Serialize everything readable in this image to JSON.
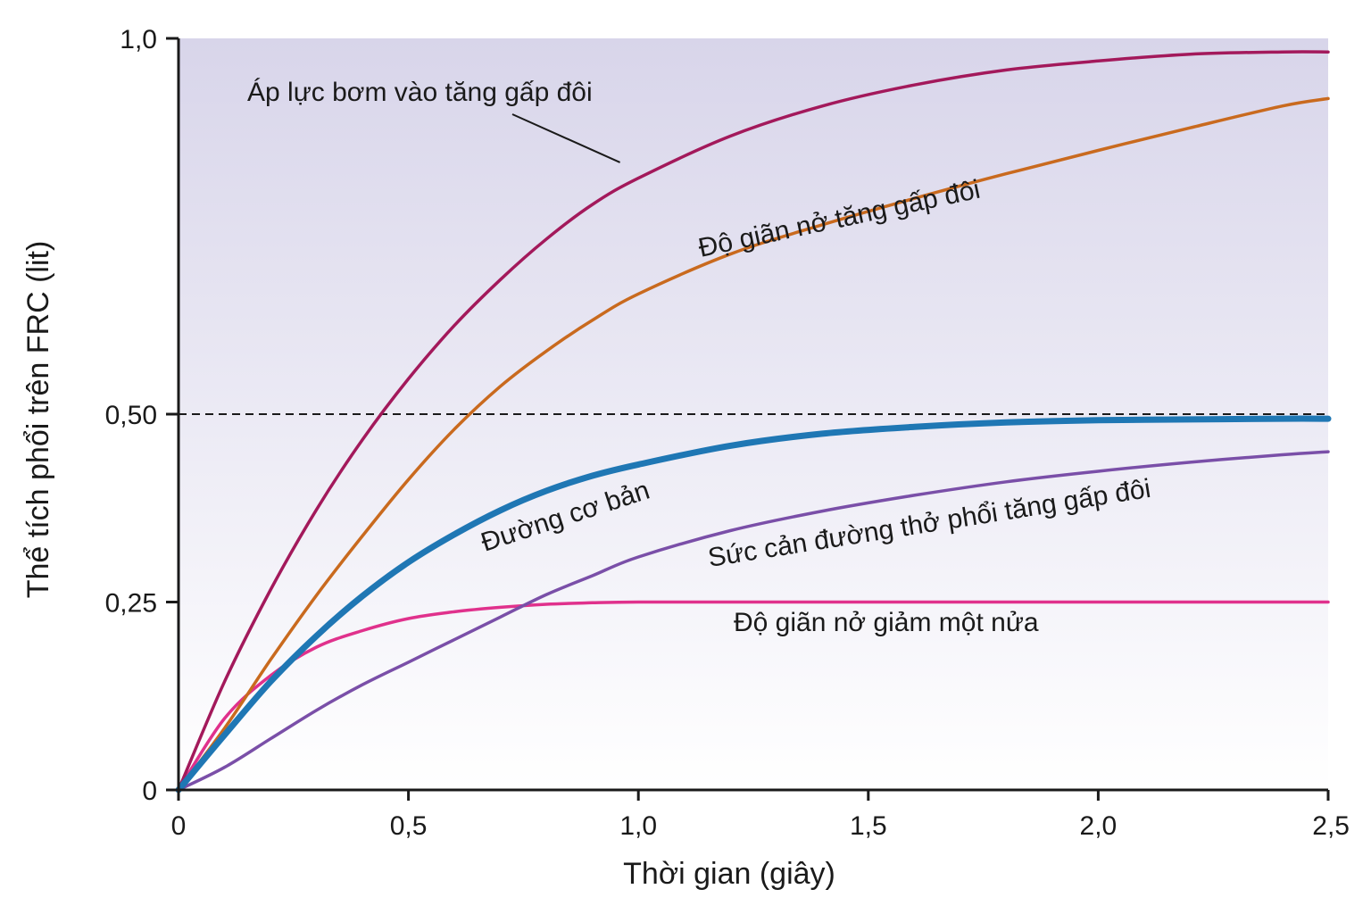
{
  "chart_data": {
    "type": "line",
    "xlabel": "Thời gian (giây)",
    "ylabel": "Thể tích phổi trên FRC (lit)",
    "xlim": [
      0,
      2.5
    ],
    "ylim": [
      0,
      1.0
    ],
    "x_ticks": [
      0,
      0.5,
      1.0,
      1.5,
      2.0,
      2.5
    ],
    "x_tick_labels": [
      "0",
      "0,5",
      "1,0",
      "1,5",
      "2,0",
      "2,5"
    ],
    "y_ticks": [
      0,
      0.25,
      0.5,
      1.0
    ],
    "y_tick_labels": [
      "0",
      "0,25",
      "0,50",
      "1,0"
    ],
    "reference_line": {
      "y": 0.5,
      "style": "dashed"
    },
    "x": [
      0,
      0.1,
      0.2,
      0.3,
      0.4,
      0.5,
      0.6,
      0.7,
      0.8,
      0.9,
      1.0,
      1.2,
      1.4,
      1.6,
      1.8,
      2.0,
      2.2,
      2.4,
      2.5
    ],
    "series": [
      {
        "name": "Áp lực bơm vào tăng gấp đôi",
        "color": "#a3195b",
        "width": "normal",
        "values": [
          0,
          0.144,
          0.266,
          0.373,
          0.466,
          0.547,
          0.618,
          0.679,
          0.733,
          0.779,
          0.814,
          0.87,
          0.91,
          0.938,
          0.958,
          0.97,
          0.979,
          0.982,
          0.982
        ]
      },
      {
        "name": "Độ giãn nở tăng gấp đôi",
        "color": "#c96a1e",
        "width": "normal",
        "values": [
          0,
          0.082,
          0.173,
          0.259,
          0.338,
          0.413,
          0.48,
          0.537,
          0.584,
          0.625,
          0.66,
          0.713,
          0.752,
          0.787,
          0.82,
          0.851,
          0.881,
          0.91,
          0.92
        ]
      },
      {
        "name": "Đường cơ bản",
        "color": "#1f77b4",
        "width": "thick",
        "values": [
          0,
          0.073,
          0.144,
          0.205,
          0.258,
          0.303,
          0.34,
          0.372,
          0.398,
          0.418,
          0.433,
          0.458,
          0.474,
          0.483,
          0.489,
          0.492,
          0.493,
          0.494,
          0.494
        ]
      },
      {
        "name": "Sức cản đường thở phổi tăng gấp đôi",
        "color": "#7a4fa8",
        "width": "normal",
        "values": [
          0,
          0.03,
          0.068,
          0.106,
          0.14,
          0.17,
          0.2,
          0.23,
          0.26,
          0.285,
          0.31,
          0.345,
          0.371,
          0.392,
          0.41,
          0.424,
          0.436,
          0.446,
          0.45
        ]
      },
      {
        "name": "Độ giãn nở giảm một nửa",
        "color": "#e0318c",
        "width": "normal",
        "values": [
          0,
          0.095,
          0.152,
          0.19,
          0.212,
          0.228,
          0.237,
          0.243,
          0.247,
          0.249,
          0.25,
          0.25,
          0.25,
          0.25,
          0.25,
          0.25,
          0.25,
          0.25,
          0.25
        ]
      }
    ],
    "annotations": [
      {
        "text": "Áp lực bơm vào tăng gấp đôi",
        "leader_to": {
          "x": 0.96,
          "y": 0.835
        }
      },
      {
        "text": "Độ giãn nở tăng gấp đôi"
      },
      {
        "text": "Đường cơ bản"
      },
      {
        "text": "Sức cản đường thở phổi tăng gấp đôi"
      },
      {
        "text": "Độ giãn nở giảm một nửa"
      }
    ],
    "grid": false,
    "legend": "none",
    "background_gradient": [
      "#d8d5ea",
      "#ffffff"
    ]
  }
}
